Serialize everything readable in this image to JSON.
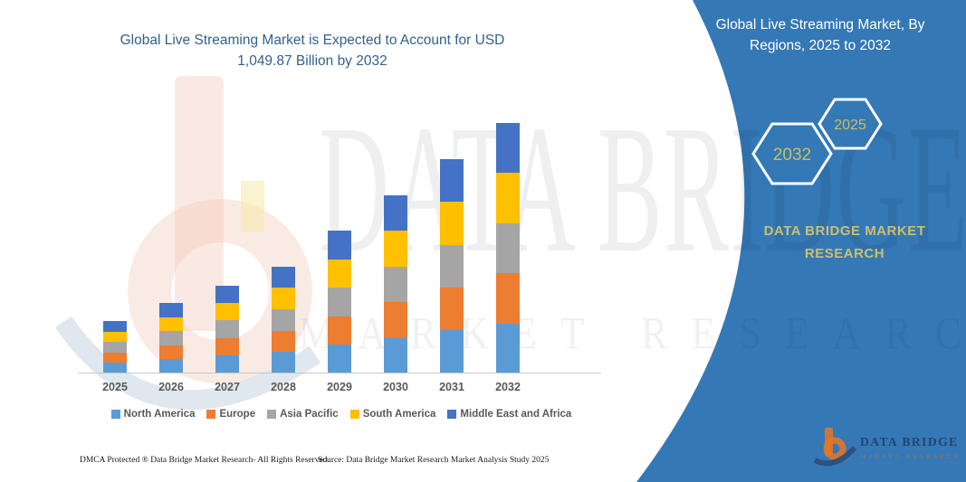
{
  "main_title": {
    "lines": [
      "Global Live Streaming Market is Expected to Account for USD",
      "1,049.87 Billion by 2032"
    ]
  },
  "panel": {
    "color": "#3478B6",
    "title_lines": [
      "Global Live Streaming Market, By",
      "Regions, 2025 to 2032"
    ],
    "badges": [
      {
        "year": "2032"
      },
      {
        "year": "2025"
      }
    ],
    "brand_lines": [
      "DATA BRIDGE MARKET",
      "RESEARCH"
    ],
    "accent_text_color": "#C9C05B"
  },
  "watermark": {
    "brand": "DATA BRIDGE",
    "tagline": "MARKET RESEARCH"
  },
  "logo": {
    "brand": "DATA BRIDGE",
    "tagline": "MARKET RESEARCH"
  },
  "footer": {
    "left": "DMCA Protected ® Data Bridge Market Research-  All Rights Reserved.",
    "right": "Source: Data Bridge Market Research  Market Analysis Study 2025"
  },
  "chart_data": {
    "type": "bar",
    "stacked": true,
    "unit": "USD Billion",
    "values_estimated_from_pixels": true,
    "title": "Global Live Streaming Market is Expected to Account for USD 1,049.87 Billion by 2032",
    "xlabel": "",
    "ylabel": "",
    "ylim": [
      0,
      1100
    ],
    "gridlines": false,
    "legend_position": "bottom",
    "categories": [
      "2025",
      "2026",
      "2027",
      "2028",
      "2029",
      "2030",
      "2031",
      "2032"
    ],
    "series": [
      {
        "name": "North America",
        "color": "#5B9BD5",
        "values": [
          44,
          59,
          74,
          90,
          120,
          149,
          180,
          210
        ]
      },
      {
        "name": "Europe",
        "color": "#ED7D31",
        "values": [
          44,
          59,
          74,
          89,
          120,
          150,
          179,
          210
        ]
      },
      {
        "name": "Asia Pacific",
        "color": "#A5A5A5",
        "values": [
          44,
          59,
          74,
          90,
          120,
          149,
          180,
          210
        ]
      },
      {
        "name": "South America",
        "color": "#FFC000",
        "values": [
          44,
          59,
          73,
          89,
          119,
          150,
          179,
          210
        ]
      },
      {
        "name": "Middle East and Africa",
        "color": "#4472C4",
        "values": [
          44,
          60,
          73,
          89,
          120,
          149,
          180,
          209.87
        ]
      }
    ],
    "totals": [
      220,
      296,
      368,
      447,
      599,
      747,
      898,
      1049.87
    ]
  }
}
